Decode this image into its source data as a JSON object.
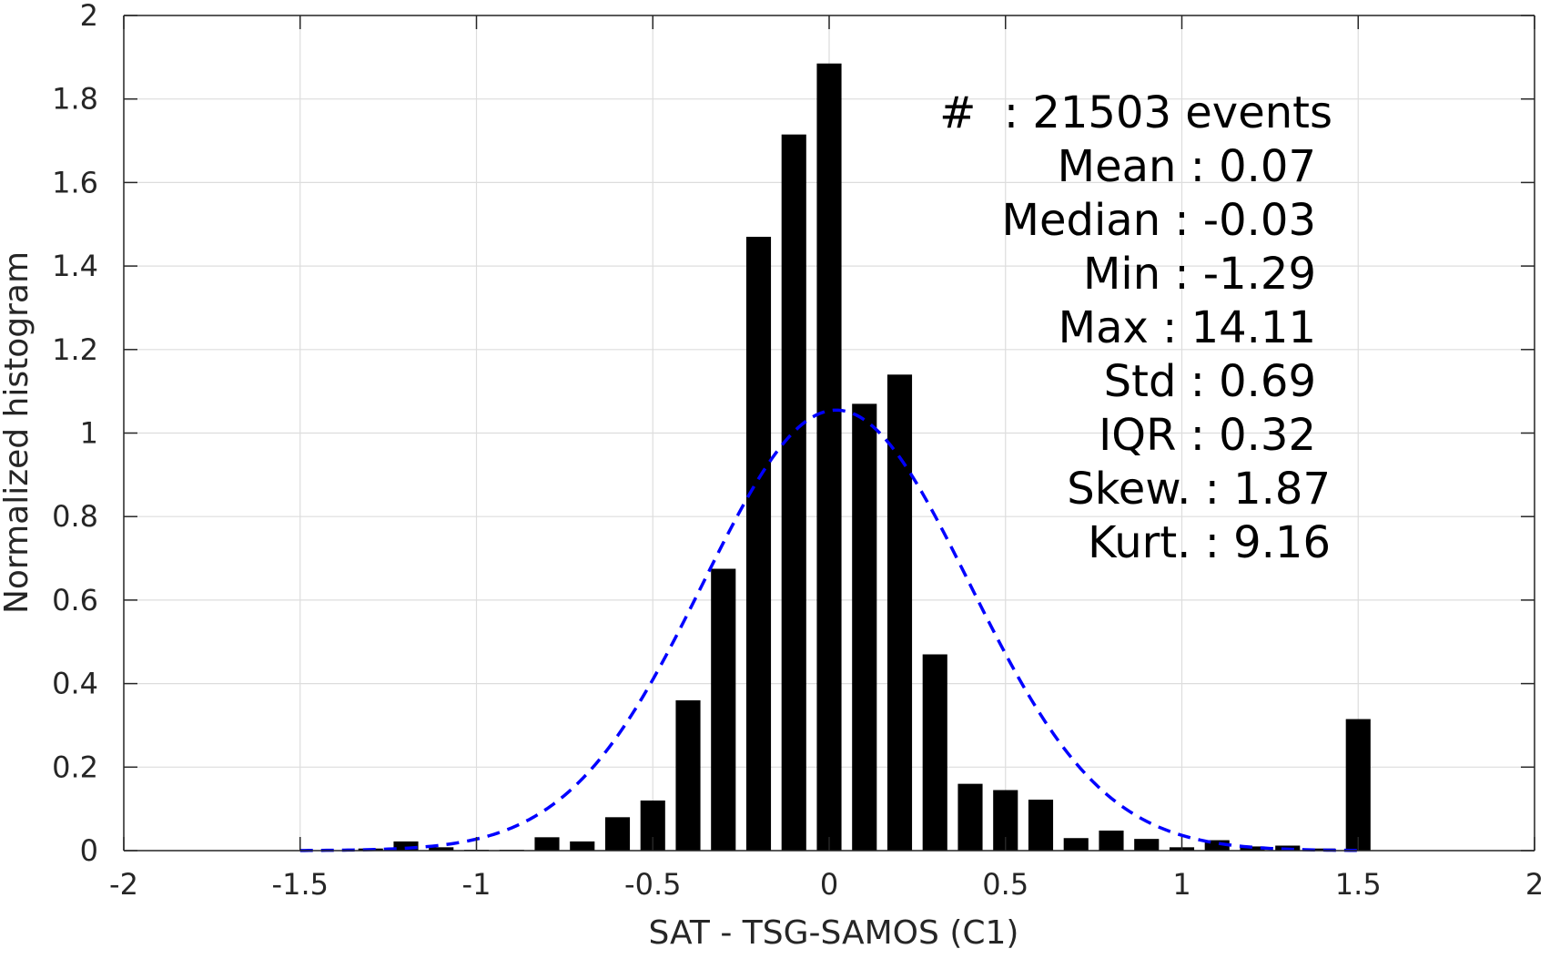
{
  "chart_data": {
    "type": "bar",
    "xlabel": "SAT - TSG-SAMOS (C1)",
    "ylabel": "Normalized histogram",
    "xlim": [
      -2,
      2
    ],
    "ylim": [
      0,
      2
    ],
    "xticks": [
      "-2",
      "-1.5",
      "-1",
      "-0.5",
      "0",
      "0.5",
      "1",
      "1.5",
      "2"
    ],
    "yticks": [
      "0",
      "0.2",
      "0.4",
      "0.6",
      "0.8",
      "1",
      "1.2",
      "1.4",
      "1.6",
      "1.8",
      "2"
    ],
    "grid": true,
    "bar_color": "#000000",
    "bin_width": 0.1,
    "bins": [
      {
        "x": -1.3,
        "y": 0.005
      },
      {
        "x": -1.2,
        "y": 0.022
      },
      {
        "x": -1.1,
        "y": 0.008
      },
      {
        "x": -1.0,
        "y": 0.002
      },
      {
        "x": -0.9,
        "y": 0.002
      },
      {
        "x": -0.8,
        "y": 0.032
      },
      {
        "x": -0.7,
        "y": 0.022
      },
      {
        "x": -0.6,
        "y": 0.08
      },
      {
        "x": -0.5,
        "y": 0.12
      },
      {
        "x": -0.4,
        "y": 0.36
      },
      {
        "x": -0.3,
        "y": 0.675
      },
      {
        "x": -0.2,
        "y": 1.47
      },
      {
        "x": -0.1,
        "y": 1.715
      },
      {
        "x": 0.0,
        "y": 1.885
      },
      {
        "x": 0.1,
        "y": 1.07
      },
      {
        "x": 0.2,
        "y": 1.14
      },
      {
        "x": 0.3,
        "y": 0.47
      },
      {
        "x": 0.4,
        "y": 0.16
      },
      {
        "x": 0.5,
        "y": 0.145
      },
      {
        "x": 0.6,
        "y": 0.122
      },
      {
        "x": 0.7,
        "y": 0.03
      },
      {
        "x": 0.8,
        "y": 0.048
      },
      {
        "x": 0.9,
        "y": 0.028
      },
      {
        "x": 1.0,
        "y": 0.008
      },
      {
        "x": 1.1,
        "y": 0.025
      },
      {
        "x": 1.2,
        "y": 0.01
      },
      {
        "x": 1.3,
        "y": 0.012
      },
      {
        "x": 1.4,
        "y": 0.005
      },
      {
        "x": 1.5,
        "y": 0.315
      }
    ],
    "gaussian": {
      "mean": 0.02,
      "sigma": 0.378,
      "peak": 1.055,
      "x_range": [
        -1.5,
        1.5
      ],
      "color": "#0000ff",
      "style": "dashed"
    },
    "annotation": {
      "lines": [
        "#  : 21503 events",
        "Mean : 0.07",
        "Median : -0.03",
        "Min : -1.29",
        "Max : 14.11",
        "Std : 0.69",
        "IQR : 0.32",
        "Skew. : 1.87",
        "Kurt. : 9.16"
      ]
    }
  }
}
